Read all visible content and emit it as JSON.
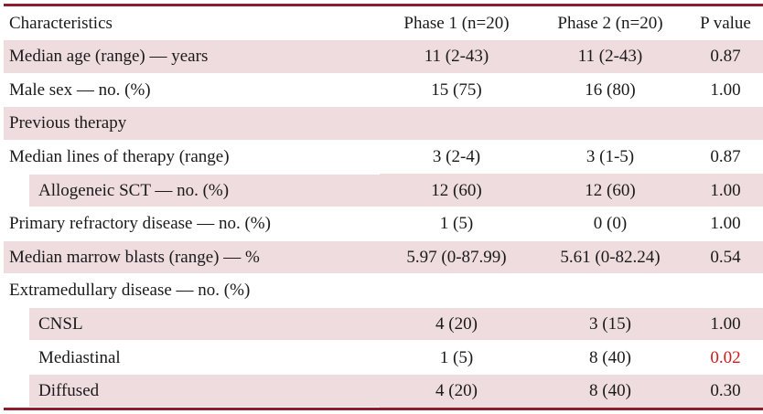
{
  "table": {
    "headers": [
      "Characteristics",
      "Phase 1 (n=20)",
      "Phase 2 (n=20)",
      "P value"
    ],
    "rows": [
      {
        "label": "Median age (range) — years",
        "phase1": "11 (2-43)",
        "phase2": "11 (2-43)",
        "p": "0.87",
        "indent": false,
        "shaded": true,
        "significant": false
      },
      {
        "label": "Male sex — no. (%)",
        "phase1": "15 (75)",
        "phase2": "16 (80)",
        "p": "1.00",
        "indent": false,
        "shaded": false,
        "significant": false
      },
      {
        "label": "Previous therapy",
        "phase1": "",
        "phase2": "",
        "p": "",
        "indent": false,
        "shaded": true,
        "significant": false
      },
      {
        "label": "Median lines of therapy (range)",
        "phase1": "3 (2-4)",
        "phase2": "3 (1-5)",
        "p": "0.87",
        "indent": false,
        "shaded": false,
        "significant": false
      },
      {
        "label": "Allogeneic SCT — no. (%)",
        "phase1": "12 (60)",
        "phase2": "12 (60)",
        "p": "1.00",
        "indent": true,
        "shaded": true,
        "significant": false
      },
      {
        "label": "Primary refractory disease — no. (%)",
        "phase1": "1 (5)",
        "phase2": "0 (0)",
        "p": "1.00",
        "indent": false,
        "shaded": false,
        "significant": false
      },
      {
        "label": "Median marrow blasts (range) — %",
        "phase1": "5.97 (0-87.99)",
        "phase2": "5.61 (0-82.24)",
        "p": "0.54",
        "indent": false,
        "shaded": true,
        "significant": false
      },
      {
        "label": "Extramedullary disease — no. (%)",
        "phase1": "",
        "phase2": "",
        "p": "",
        "indent": false,
        "shaded": false,
        "significant": false
      },
      {
        "label": "CNSL",
        "phase1": "4 (20)",
        "phase2": "3 (15)",
        "p": "1.00",
        "indent": true,
        "shaded": true,
        "significant": false
      },
      {
        "label": "Mediastinal",
        "phase1": "1 (5)",
        "phase2": "8 (40)",
        "p": "0.02",
        "indent": true,
        "shaded": false,
        "significant": true
      },
      {
        "label": "Diffused",
        "phase1": "4 (20)",
        "phase2": "8 (40)",
        "p": "0.30",
        "indent": true,
        "shaded": true,
        "significant": false
      }
    ]
  },
  "colors": {
    "rule": "#8b1d2c",
    "shade": "#efdcde",
    "significant": "#d11a1a"
  }
}
